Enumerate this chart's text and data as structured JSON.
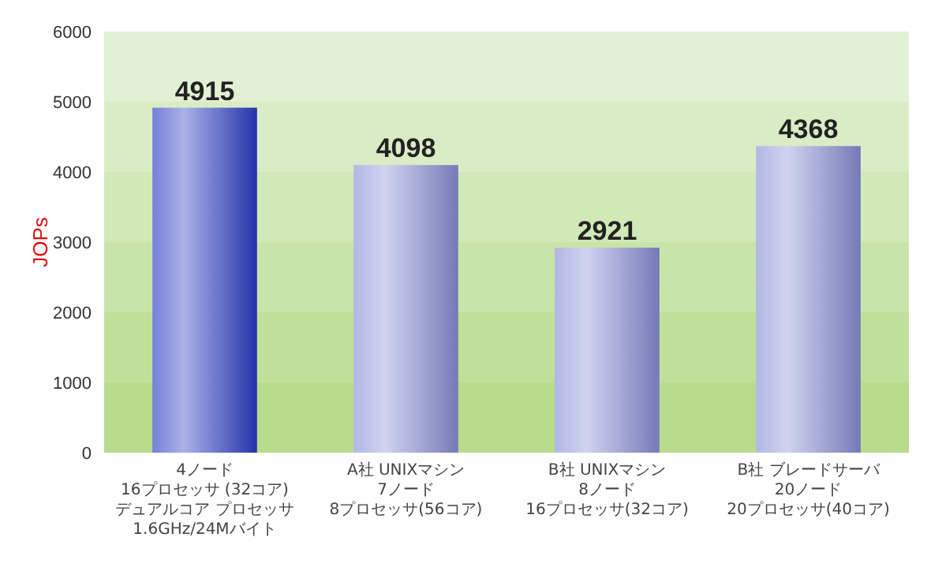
{
  "chart_data": {
    "type": "bar",
    "ylabel": "JOPs",
    "categories": [
      "4ノード\n16プロセッサ (32コア)\nデュアルコア プロセッサ\n1.6GHz/24Mバイト",
      "A社 UNIXマシン\n7ノード\n8プロセッサ(56コア)",
      "B社 UNIXマシン\n8ノード\n16プロセッサ(32コア)",
      "B社 ブレードサーバ\n20ノード\n20プロセッサ(40コア)"
    ],
    "values": [
      4915,
      4098,
      2921,
      4368
    ],
    "colors": [
      "#2a3cc8",
      "#8a90d8",
      "#8a90d8",
      "#8a90d8"
    ],
    "data_labels": true,
    "ylim": [
      0,
      6000
    ],
    "yticks": [
      0,
      1000,
      2000,
      3000,
      4000,
      5000,
      6000
    ]
  }
}
